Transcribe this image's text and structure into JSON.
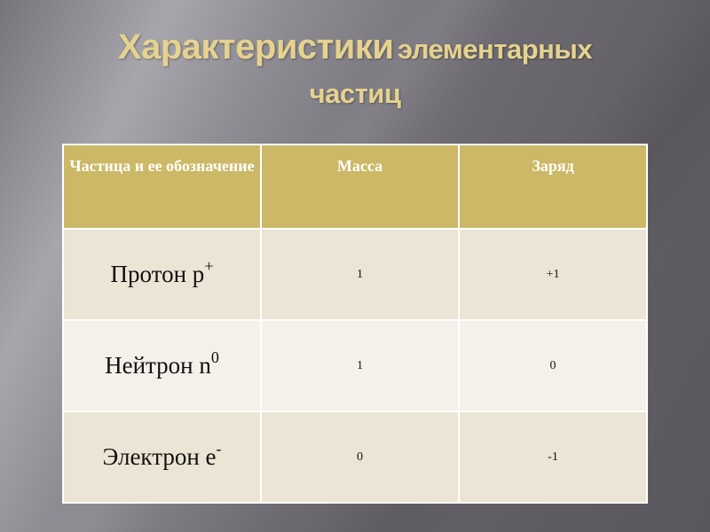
{
  "title": {
    "part1": "Характеристики",
    "part2": "элементарных",
    "part3": "частиц"
  },
  "table": {
    "headers": [
      "Частица и ее обозначение",
      "Масса",
      "Заряд"
    ],
    "rows": [
      {
        "name": "Протон p",
        "superscript": "+",
        "mass": "1",
        "charge": "+1"
      },
      {
        "name": "Нейтрон n",
        "superscript": "0",
        "mass": "1",
        "charge": "0"
      },
      {
        "name": "Электрон e",
        "superscript": "-",
        "mass": "0",
        "charge": "-1"
      }
    ]
  },
  "colors": {
    "title": "#e6d28f",
    "header_bg": "#ccb866",
    "row_bg": "#ece4d4",
    "row_alt_bg": "#f5f1ea"
  }
}
